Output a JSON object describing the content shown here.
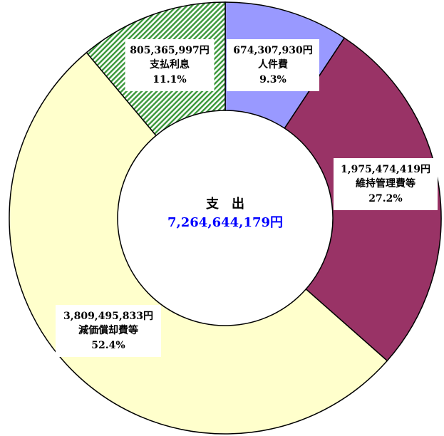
{
  "chart_data": {
    "type": "donut",
    "categories": [
      "人件費",
      "維持管理費等",
      "減価償却費等",
      "支払利息"
    ],
    "values": [
      9.3,
      27.2,
      52.4,
      11.1
    ],
    "value_labels": [
      "9.3%",
      "27.2%",
      "52.4%",
      "11.1%"
    ],
    "amounts": [
      674307930,
      1975474419,
      3809495833,
      805365997
    ],
    "amount_labels": [
      "674,307,930円",
      "1,975,474,419円",
      "3,809,495,833円",
      "805,365,997円"
    ],
    "colors": [
      "#9999ff",
      "#993366",
      "#ffffcc",
      "#3f9a3f"
    ],
    "hatched": [
      false,
      false,
      false,
      true
    ],
    "center_label": "支　出",
    "total": 7264644179,
    "total_label": "7,264,644,179円",
    "total_color": "#0000ff"
  }
}
